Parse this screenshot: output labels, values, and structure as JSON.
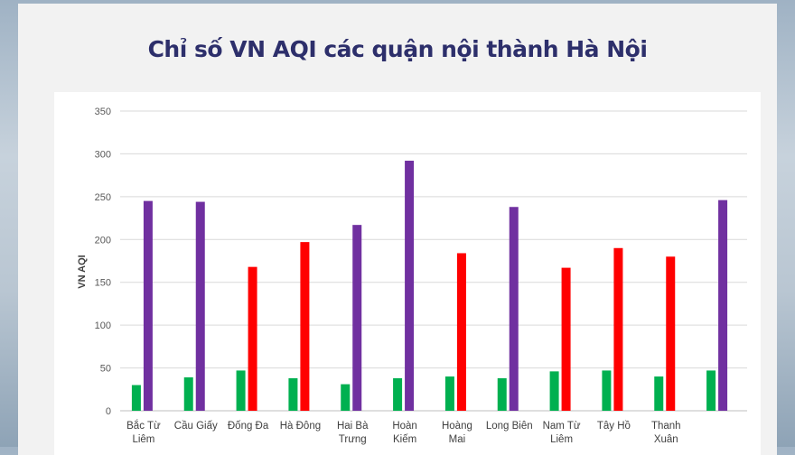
{
  "title": "Chỉ số VN AQI các quận nội thành Hà Nội",
  "colors": {
    "card_background": "#f2f2f2",
    "title": "#2d2f6b",
    "green_series": "#00b050",
    "red_series": "#ff0000",
    "purple_series": "#7030a0",
    "gridline": "#d9d9d9"
  },
  "chart_data": {
    "type": "bar",
    "title": "Chỉ số VN AQI các quận nội thành Hà Nội",
    "xlabel": "",
    "ylabel": "VN AQI",
    "ylim": [
      0,
      350
    ],
    "yticks": [
      0,
      50,
      100,
      150,
      200,
      250,
      300,
      350
    ],
    "grid": true,
    "legend": "none",
    "categories": [
      [
        "Bắc Từ",
        "Liêm"
      ],
      [
        "Cầu Giấy"
      ],
      [
        "Đống Đa"
      ],
      [
        "Hà Đông"
      ],
      [
        "Hai Bà",
        "Trưng"
      ],
      [
        "Hoàn",
        "Kiếm"
      ],
      [
        "Hoàng",
        "Mai"
      ],
      [
        "Long Biên"
      ],
      [
        "Nam Từ",
        "Liêm"
      ],
      [
        "Tây Hồ"
      ],
      [
        "Thanh",
        "Xuân"
      ],
      [
        ""
      ]
    ],
    "series": [
      {
        "color": "#00b050",
        "values": [
          30,
          39,
          47,
          38,
          31,
          38,
          40,
          38,
          46,
          47,
          40,
          47
        ]
      },
      {
        "color": "mixed",
        "values": [
          245,
          244,
          168,
          197,
          217,
          292,
          184,
          238,
          167,
          190,
          180,
          246
        ],
        "bar_colors": [
          "#7030a0",
          "#7030a0",
          "#ff0000",
          "#ff0000",
          "#7030a0",
          "#7030a0",
          "#ff0000",
          "#7030a0",
          "#ff0000",
          "#ff0000",
          "#ff0000",
          "#7030a0"
        ]
      }
    ]
  }
}
